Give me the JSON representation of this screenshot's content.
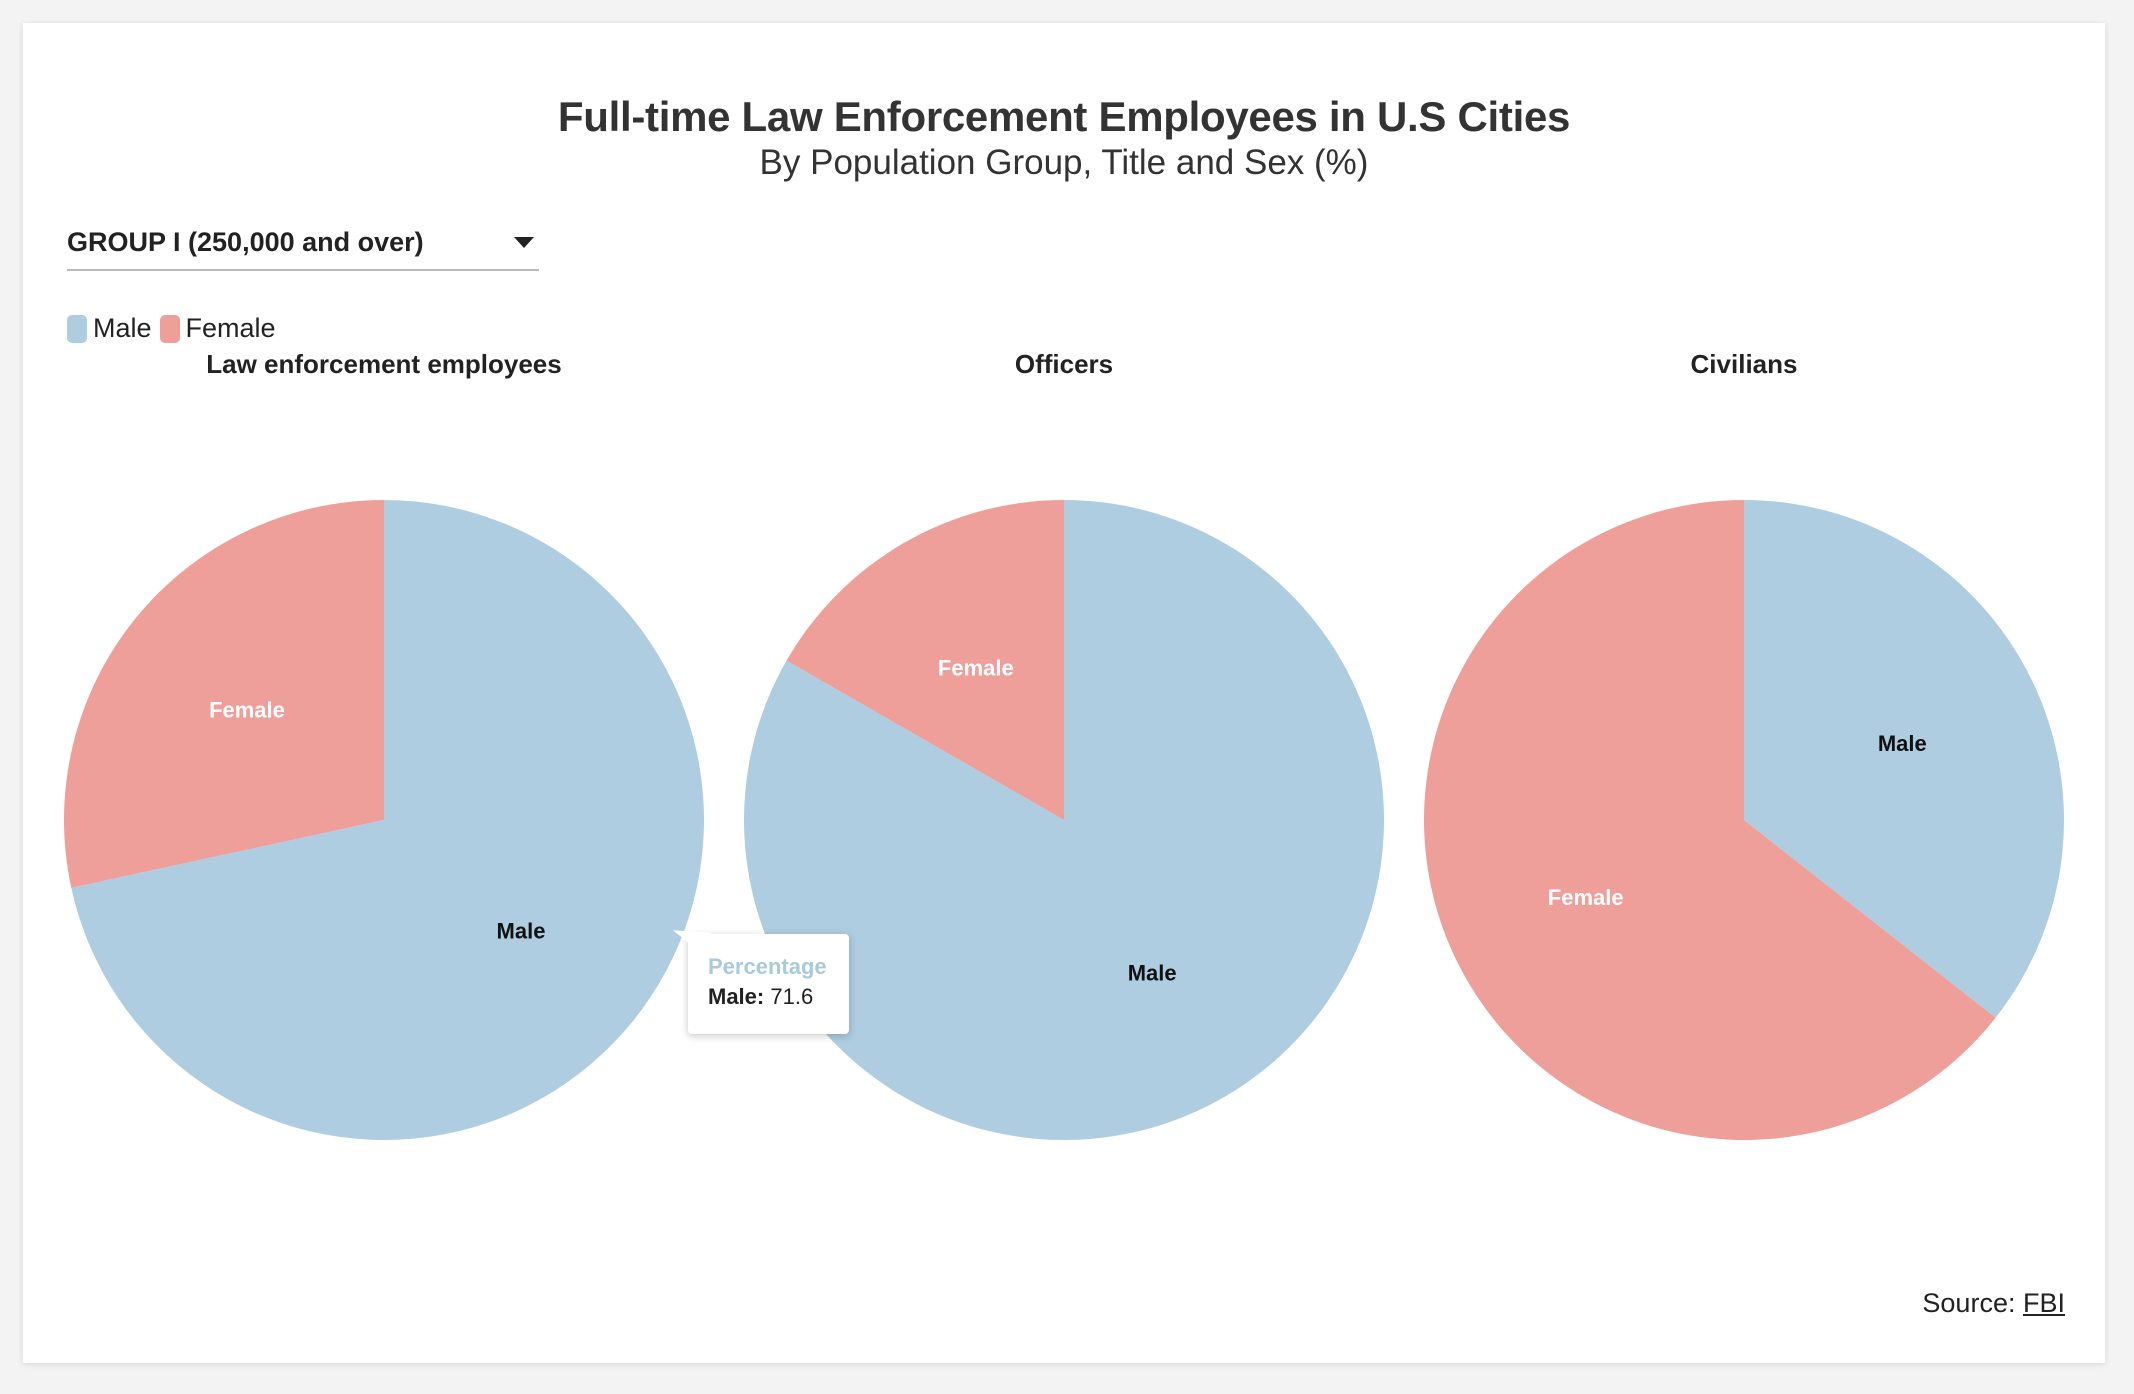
{
  "header": {
    "title": "Full-time Law Enforcement Employees in U.S Cities",
    "subtitle": "By Population Group, Title and Sex (%)"
  },
  "dropdown": {
    "selected": "GROUP I (250,000 and over)"
  },
  "legend": {
    "items": [
      {
        "label": "Male",
        "color": "#aecde0"
      },
      {
        "label": "Female",
        "color": "#ee9f9a"
      }
    ]
  },
  "chart_data": {
    "type": "pie",
    "colors": {
      "Male": "#aecde0",
      "Female": "#ee9f9a"
    },
    "charts": [
      {
        "title": "Law enforcement employees",
        "slices": [
          {
            "label": "Male",
            "value": 71.6
          },
          {
            "label": "Female",
            "value": 28.4
          }
        ]
      },
      {
        "title": "Officers",
        "slices": [
          {
            "label": "Male",
            "value": 83.3
          },
          {
            "label": "Female",
            "value": 16.7
          }
        ]
      },
      {
        "title": "Civilians",
        "slices": [
          {
            "label": "Male",
            "value": 35.6
          },
          {
            "label": "Female",
            "value": 64.4
          }
        ]
      }
    ]
  },
  "tooltip": {
    "heading": "Percentage",
    "key": "Male:",
    "value": "71.6"
  },
  "footer": {
    "source_label": "Source:",
    "source_link": "FBI"
  }
}
